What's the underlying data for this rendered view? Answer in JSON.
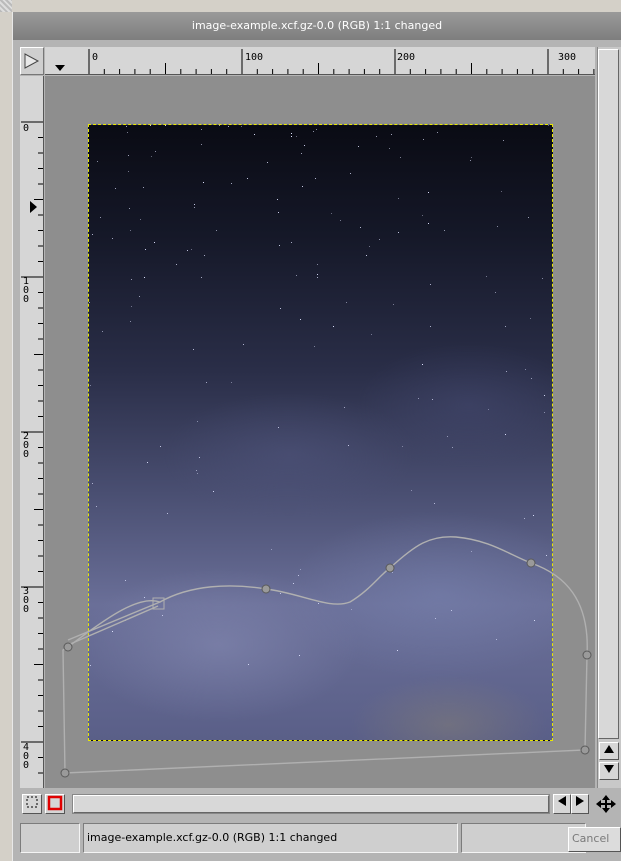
{
  "window": {
    "title": "image-example.xcf.gz-0.0 (RGB) 1:1 changed"
  },
  "rulers": {
    "horizontal_labels": [
      "0",
      "100",
      "200",
      "300"
    ],
    "vertical_labels": [
      "0",
      "100",
      "200",
      "300",
      "400"
    ]
  },
  "statusbar": {
    "coords": "",
    "message": "image-example.xcf.gz-0.0 (RGB) 1:1 changed",
    "extra": "",
    "cancel_label": "Cancel"
  },
  "icons": {
    "menu": "triangle-right-icon",
    "quickmask": "quickmask-icon",
    "nav": "move-cross-icon"
  },
  "colors": {
    "selection_outline": "#e8e800",
    "path_stroke": "#b0b0b0",
    "quickmask_red": "#e00000"
  }
}
